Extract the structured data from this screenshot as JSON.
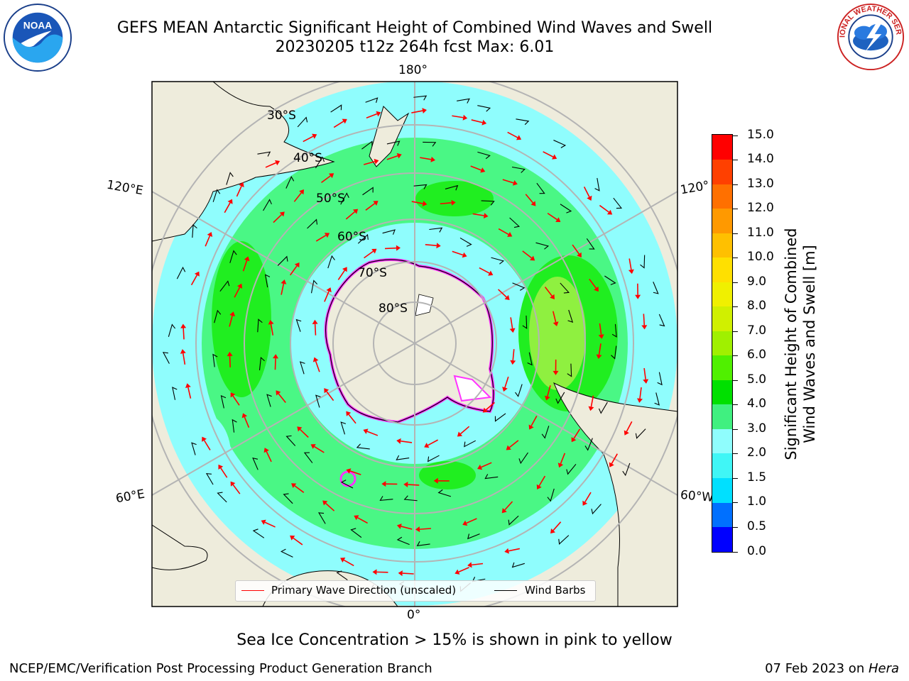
{
  "header": {
    "title_line1": "GEFS MEAN Antarctic Significant Height of Combined Wind Waves and Swell",
    "title_line2": "20230205 t12z 264h fcst   Max: 6.01"
  },
  "map": {
    "projection": "south-polar-stereographic",
    "longitude_labels": {
      "top": "180°",
      "left_upper": "120°E",
      "right_upper": "120°",
      "left_lower": "60°E",
      "right_lower": "60°W",
      "bottom": "0°"
    },
    "latitude_labels": [
      "30°S",
      "40°S",
      "50°S",
      "60°S",
      "70°S",
      "80°S"
    ],
    "colors": {
      "land": "#eeecdc",
      "ocean_low": "#8ffdfd",
      "ocean_mid": "#4af785",
      "ocean_high": "#20ee20",
      "storm_core": "#8ff040",
      "sea_ice_edge": "#ff33ff",
      "wave_arrow": "#ff0000",
      "wind_barb": "#000000",
      "grid": "#b4b4b4"
    }
  },
  "legend": {
    "primary_wave_label": "Primary Wave Direction (unscaled)",
    "wind_barbs_label": "Wind Barbs"
  },
  "colorbar": {
    "title_line1": "Significant Height of Combined",
    "title_line2": "Wind Waves and Swell [m]",
    "ticks": [
      "0.0",
      "0.5",
      "1.0",
      "1.5",
      "2.0",
      "3.0",
      "4.0",
      "5.0",
      "6.0",
      "7.0",
      "8.0",
      "9.0",
      "10.0",
      "11.0",
      "12.0",
      "13.0",
      "14.0",
      "15.0"
    ],
    "colors": [
      "#0000ff",
      "#0070ff",
      "#00e0ff",
      "#40f6f6",
      "#8ffdfd",
      "#40f080",
      "#00e000",
      "#50f000",
      "#a0f000",
      "#d0f000",
      "#f0f000",
      "#ffe000",
      "#ffc000",
      "#ff9900",
      "#ff7000",
      "#ff4000",
      "#ff0000"
    ]
  },
  "note": "Sea Ice Concentration > 15% is shown in pink to yellow",
  "footer": {
    "left": "NCEP/EMC/Verification Post Processing Product Generation Branch",
    "right_prefix": "07 Feb 2023 on ",
    "right_host": "Hera"
  }
}
